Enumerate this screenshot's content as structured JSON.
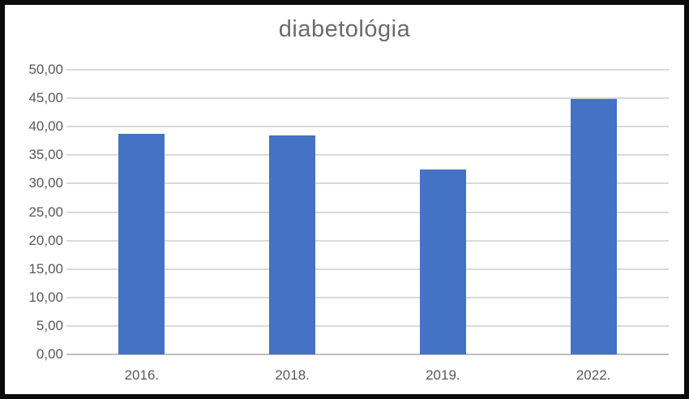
{
  "title": "diabetológia",
  "colors": {
    "bar": "#4472c4",
    "gridline": "#d9d9d9",
    "axis_line": "#bfbfbf",
    "tick_label": "#595959",
    "title_text": "#6b6b6b",
    "border": "#0b0b0b",
    "background": "#ffffff"
  },
  "chart_data": {
    "type": "bar",
    "title": "diabetológia",
    "categories": [
      "2016.",
      "2018.",
      "2019.",
      "2022."
    ],
    "values": [
      38.7,
      38.4,
      32.5,
      44.9
    ],
    "xlabel": "",
    "ylabel": "",
    "ylim": [
      0,
      50
    ],
    "ytick_step": 5,
    "ytick_labels": [
      "0,00",
      "5,00",
      "10,00",
      "15,00",
      "20,00",
      "25,00",
      "30,00",
      "35,00",
      "40,00",
      "45,00",
      "50,00"
    ],
    "grid": true,
    "legend_position": "none",
    "bar_color": "#4472c4"
  }
}
